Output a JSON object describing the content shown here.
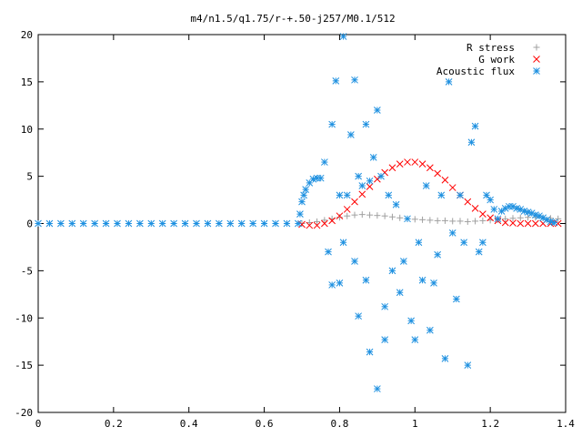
{
  "chart_data": {
    "type": "scatter",
    "title": "m4/n1.5/q1.75/r-+.50-j257/M0.1/512",
    "xlabel": "",
    "ylabel": "",
    "xlim": [
      0,
      1.4
    ],
    "ylim": [
      -20,
      20
    ],
    "x_ticks": [
      0,
      0.2,
      0.4,
      0.6,
      0.8,
      1,
      1.2,
      1.4
    ],
    "x_tick_labels": [
      "0",
      "0.2",
      "0.4",
      "0.6",
      "0.8",
      "1",
      "1.2",
      "1.4"
    ],
    "y_ticks": [
      -20,
      -15,
      -10,
      -5,
      0,
      5,
      10,
      15,
      20
    ],
    "y_tick_labels": [
      "-20",
      "-15",
      "-10",
      "-5",
      "0",
      "5",
      "10",
      "15",
      "20"
    ],
    "grid": false,
    "legend_position": "top-right",
    "series": [
      {
        "name": "R stress",
        "marker": "plus",
        "color": "#a0a0a0",
        "x": [
          0.7,
          0.72,
          0.74,
          0.76,
          0.78,
          0.8,
          0.82,
          0.84,
          0.86,
          0.88,
          0.9,
          0.92,
          0.94,
          0.96,
          0.98,
          1.0,
          1.02,
          1.04,
          1.06,
          1.08,
          1.1,
          1.12,
          1.14,
          1.16,
          1.18,
          1.2,
          1.22,
          1.24,
          1.26,
          1.28,
          1.3,
          1.32,
          1.34,
          1.36,
          1.38
        ],
        "y": [
          0.0,
          0.1,
          0.2,
          0.35,
          0.5,
          0.65,
          0.8,
          0.9,
          0.95,
          0.9,
          0.85,
          0.8,
          0.7,
          0.6,
          0.5,
          0.45,
          0.4,
          0.35,
          0.3,
          0.3,
          0.25,
          0.25,
          0.2,
          0.25,
          0.3,
          0.35,
          0.4,
          0.5,
          0.55,
          0.6,
          0.65,
          0.65,
          0.6,
          0.55,
          0.5
        ]
      },
      {
        "name": "G work",
        "marker": "cross",
        "color": "#ff0000",
        "x": [
          0.7,
          0.72,
          0.74,
          0.76,
          0.78,
          0.8,
          0.82,
          0.84,
          0.86,
          0.88,
          0.9,
          0.92,
          0.94,
          0.96,
          0.98,
          1.0,
          1.02,
          1.04,
          1.06,
          1.08,
          1.1,
          1.12,
          1.14,
          1.16,
          1.18,
          1.2,
          1.22,
          1.24,
          1.26,
          1.28,
          1.3,
          1.32,
          1.34,
          1.36,
          1.38
        ],
        "y": [
          -0.1,
          -0.2,
          -0.2,
          0.0,
          0.3,
          0.8,
          1.5,
          2.3,
          3.1,
          3.9,
          4.7,
          5.4,
          5.9,
          6.3,
          6.5,
          6.5,
          6.3,
          5.9,
          5.3,
          4.6,
          3.8,
          3.0,
          2.3,
          1.6,
          1.0,
          0.6,
          0.3,
          0.1,
          0.05,
          0.0,
          0.0,
          0.0,
          0.0,
          0.0,
          0.0
        ]
      },
      {
        "name": "Acoustic flux",
        "marker": "star",
        "color": "#1e90e0",
        "x": [
          0.0,
          0.03,
          0.06,
          0.09,
          0.12,
          0.15,
          0.18,
          0.21,
          0.24,
          0.27,
          0.3,
          0.33,
          0.36,
          0.39,
          0.42,
          0.45,
          0.48,
          0.51,
          0.54,
          0.57,
          0.6,
          0.63,
          0.66,
          0.69,
          0.695,
          0.7,
          0.705,
          0.71,
          0.72,
          0.73,
          0.74,
          0.75,
          0.76,
          0.77,
          0.78,
          0.78,
          0.79,
          0.8,
          0.8,
          0.81,
          0.81,
          0.82,
          0.83,
          0.84,
          0.84,
          0.85,
          0.85,
          0.86,
          0.87,
          0.87,
          0.88,
          0.88,
          0.89,
          0.9,
          0.9,
          0.91,
          0.92,
          0.92,
          0.93,
          0.94,
          0.95,
          0.96,
          0.97,
          0.98,
          0.99,
          1.0,
          1.01,
          1.02,
          1.03,
          1.04,
          1.05,
          1.06,
          1.07,
          1.08,
          1.09,
          1.1,
          1.11,
          1.12,
          1.13,
          1.14,
          1.15,
          1.16,
          1.17,
          1.18,
          1.19,
          1.2,
          1.21,
          1.22,
          1.23,
          1.24,
          1.25,
          1.26,
          1.27,
          1.28,
          1.29,
          1.3,
          1.31,
          1.32,
          1.33,
          1.34,
          1.35,
          1.36,
          1.37
        ],
        "y": [
          0,
          0,
          0,
          0,
          0,
          0,
          0,
          0,
          0,
          0,
          0,
          0,
          0,
          0,
          0,
          0,
          0,
          0,
          0,
          0,
          0,
          0,
          0,
          0,
          1.0,
          2.3,
          3.0,
          3.6,
          4.3,
          4.7,
          4.8,
          4.8,
          6.5,
          -3.0,
          -6.5,
          10.5,
          15.1,
          3.0,
          -6.3,
          19.8,
          -2.0,
          3.0,
          9.4,
          15.2,
          -4.0,
          5.0,
          -9.8,
          4.0,
          10.5,
          -6.0,
          4.5,
          -13.6,
          7.0,
          12.0,
          -17.5,
          5.0,
          -8.8,
          -12.3,
          3.0,
          -5.0,
          2.0,
          -7.3,
          -4.0,
          0.5,
          -10.3,
          -12.3,
          -2.0,
          -6.0,
          4.0,
          -11.3,
          -6.3,
          -3.3,
          3.0,
          -14.3,
          15.0,
          -1.0,
          -8.0,
          3.0,
          -2.0,
          -15.0,
          8.6,
          10.3,
          -3.0,
          -2.0,
          3.0,
          2.5,
          1.5,
          0.5,
          1.3,
          1.6,
          1.8,
          1.8,
          1.6,
          1.5,
          1.3,
          1.2,
          1.1,
          0.9,
          0.8,
          0.6,
          0.4,
          0.2,
          0.1
        ]
      }
    ]
  }
}
